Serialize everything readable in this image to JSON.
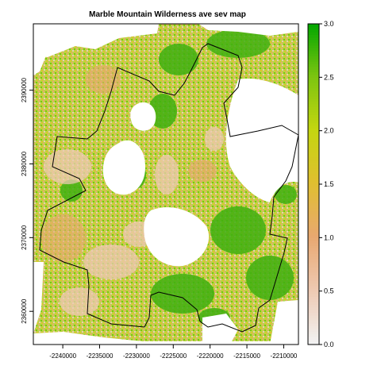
{
  "title": "Marble Mountain Wilderness ave sev map",
  "map": {
    "x_ticks": [
      -2240000,
      -2235000,
      -2230000,
      -2225000,
      -2220000,
      -2215000,
      -2210000
    ],
    "x_tick_labels": [
      "-2240000",
      "-2235000",
      "-2230000",
      "-2225000",
      "-2220000",
      "-2215000",
      "-2210000"
    ],
    "y_ticks": [
      2360000,
      2370000,
      2380000,
      2390000
    ],
    "y_tick_labels": [
      "2360000",
      "2370000",
      "2380000",
      "2390000"
    ],
    "x_range": [
      -2244000,
      -2208000
    ],
    "y_range": [
      2355500,
      2399000
    ]
  },
  "legend": {
    "ticks": [
      0.0,
      0.5,
      1.0,
      1.5,
      2.0,
      2.5,
      3.0
    ],
    "tick_labels": [
      "0.0",
      "0.5",
      "1.0",
      "1.5",
      "2.0",
      "2.5",
      "3.0"
    ],
    "range": [
      0,
      3
    ],
    "colors": [
      "#f2f2f2",
      "#eec9b2",
      "#e8a870",
      "#e0bf30",
      "#c4d610",
      "#7cc410",
      "#00a600"
    ]
  }
}
